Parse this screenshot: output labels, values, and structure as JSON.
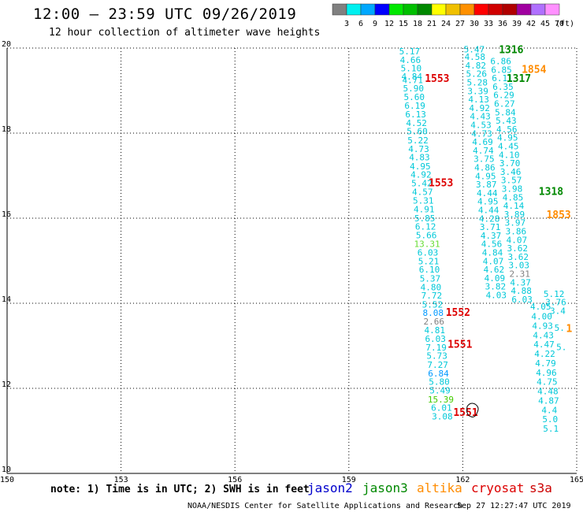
{
  "header": {
    "title": "12:00 – 23:59 UTC 09/26/2019",
    "subtitle": "12 hour collection of altimeter wave heights"
  },
  "colorbar": {
    "unit": "(ft)",
    "bins": [
      {
        "color": "#808080",
        "label": "3"
      },
      {
        "color": "#00f0f0",
        "label": "6"
      },
      {
        "color": "#00a8ff",
        "label": "9"
      },
      {
        "color": "#0000ff",
        "label": "12"
      },
      {
        "color": "#00e800",
        "label": "15"
      },
      {
        "color": "#00c000",
        "label": "18"
      },
      {
        "color": "#008800",
        "label": "21"
      },
      {
        "color": "#ffff00",
        "label": "24"
      },
      {
        "color": "#f0c000",
        "label": "27"
      },
      {
        "color": "#ff9000",
        "label": "30"
      },
      {
        "color": "#ff0000",
        "label": "33"
      },
      {
        "color": "#d00000",
        "label": "36"
      },
      {
        "color": "#b00000",
        "label": "39"
      },
      {
        "color": "#a000a0",
        "label": "42"
      },
      {
        "color": "#b070ff",
        "label": "45"
      },
      {
        "color": "#ff90ff",
        "label": "70"
      }
    ]
  },
  "chart_data": {
    "type": "scatter",
    "title": "12:00 – 23:59 UTC 09/26/2019",
    "subtitle": "12 hour collection of altimeter wave heights",
    "xlim": [
      150,
      165
    ],
    "ylim": [
      10,
      20
    ],
    "x_ticks": [
      "150",
      "153",
      "156",
      "159",
      "162",
      "165"
    ],
    "y_ticks": [
      "10",
      "12",
      "14",
      "16",
      "18",
      "20"
    ],
    "grid": true,
    "satellites": [
      {
        "name": "jason2",
        "color": "#0000cc"
      },
      {
        "name": "jason3",
        "color": "#008800"
      },
      {
        "name": "altika",
        "color": "#ff8c00"
      },
      {
        "name": "cryosat",
        "color": "#dd0000"
      },
      {
        "name": "s3a",
        "color": "#cc0000"
      }
    ],
    "track_west": [
      {
        "x": 160.6,
        "y": 19.85,
        "v": "5.17",
        "c": "#00c8d8"
      },
      {
        "x": 160.62,
        "y": 19.65,
        "v": "4.66",
        "c": "#00c8d8"
      },
      {
        "x": 160.64,
        "y": 19.45,
        "v": "5.10",
        "c": "#00c8d8"
      },
      {
        "x": 160.66,
        "y": 19.26,
        "v": "4.84",
        "c": "#00c8d8"
      },
      {
        "x": 160.68,
        "y": 19.18,
        "v": "4.71",
        "c": "#00c8d8"
      },
      {
        "x": 160.7,
        "y": 18.98,
        "v": "5.90",
        "c": "#00c8d8"
      },
      {
        "x": 160.72,
        "y": 18.78,
        "v": "5.60",
        "c": "#00c8d8"
      },
      {
        "x": 160.74,
        "y": 18.57,
        "v": "6.19",
        "c": "#00c8d8"
      },
      {
        "x": 160.76,
        "y": 18.37,
        "v": "6.13",
        "c": "#00c8d8"
      },
      {
        "x": 160.78,
        "y": 18.17,
        "v": "4.52",
        "c": "#00c8d8"
      },
      {
        "x": 160.8,
        "y": 17.97,
        "v": "5.60",
        "c": "#00c8d8"
      },
      {
        "x": 160.82,
        "y": 17.76,
        "v": "5.22",
        "c": "#00c8d8"
      },
      {
        "x": 160.84,
        "y": 17.56,
        "v": "4.73",
        "c": "#00c8d8"
      },
      {
        "x": 160.86,
        "y": 17.36,
        "v": "4.83",
        "c": "#00c8d8"
      },
      {
        "x": 160.88,
        "y": 17.15,
        "v": "4.95",
        "c": "#00c8d8"
      },
      {
        "x": 160.9,
        "y": 16.95,
        "v": "4.92",
        "c": "#00c8d8"
      },
      {
        "x": 160.92,
        "y": 16.75,
        "v": "5.42",
        "c": "#00c8d8"
      },
      {
        "x": 160.94,
        "y": 16.55,
        "v": "4.57",
        "c": "#00c8d8"
      },
      {
        "x": 160.96,
        "y": 16.34,
        "v": "5.31",
        "c": "#00c8d8"
      },
      {
        "x": 160.98,
        "y": 16.14,
        "v": "4.91",
        "c": "#00c8d8"
      },
      {
        "x": 161.0,
        "y": 15.93,
        "v": "5.85",
        "c": "#00c8d8"
      },
      {
        "x": 161.02,
        "y": 15.73,
        "v": "6.12",
        "c": "#00c8d8"
      },
      {
        "x": 161.04,
        "y": 15.53,
        "v": "5.66",
        "c": "#00c8d8"
      },
      {
        "x": 161.06,
        "y": 15.32,
        "v": "13.31",
        "c": "#66dd33"
      },
      {
        "x": 161.08,
        "y": 15.12,
        "v": "6.03",
        "c": "#00c8d8"
      },
      {
        "x": 161.1,
        "y": 14.92,
        "v": "5.21",
        "c": "#00c8d8"
      },
      {
        "x": 161.12,
        "y": 14.72,
        "v": "6.10",
        "c": "#00c8d8"
      },
      {
        "x": 161.14,
        "y": 14.51,
        "v": "5.37",
        "c": "#00c8d8"
      },
      {
        "x": 161.16,
        "y": 14.31,
        "v": "4.80",
        "c": "#00c8d8"
      },
      {
        "x": 161.18,
        "y": 14.11,
        "v": "7.72",
        "c": "#00c8d8"
      },
      {
        "x": 161.2,
        "y": 13.9,
        "v": "5.52",
        "c": "#00c8d8"
      },
      {
        "x": 161.22,
        "y": 13.7,
        "v": "8.08",
        "c": "#0099ff"
      },
      {
        "x": 161.24,
        "y": 13.5,
        "v": "2.66",
        "c": "#808080"
      },
      {
        "x": 161.26,
        "y": 13.3,
        "v": "4.81",
        "c": "#00c8d8"
      },
      {
        "x": 161.28,
        "y": 13.09,
        "v": "6.03",
        "c": "#00c8d8"
      },
      {
        "x": 161.3,
        "y": 12.89,
        "v": "7.19",
        "c": "#00c8d8"
      },
      {
        "x": 161.32,
        "y": 12.69,
        "v": "5.73",
        "c": "#00c8d8"
      },
      {
        "x": 161.34,
        "y": 12.48,
        "v": "7.27",
        "c": "#00c8d8"
      },
      {
        "x": 161.36,
        "y": 12.28,
        "v": "6.84",
        "c": "#0099ff"
      },
      {
        "x": 161.38,
        "y": 12.08,
        "v": "5.80",
        "c": "#00c8d8"
      },
      {
        "x": 161.4,
        "y": 11.88,
        "v": "5.49",
        "c": "#00c8d8"
      },
      {
        "x": 161.42,
        "y": 11.67,
        "v": "15.39",
        "c": "#44cc00"
      },
      {
        "x": 161.44,
        "y": 11.47,
        "v": "6.01",
        "c": "#00c8d8"
      },
      {
        "x": 161.46,
        "y": 11.27,
        "v": "3.08",
        "c": "#00c8d8"
      }
    ],
    "track_east": [
      {
        "x": 162.3,
        "y": 19.9,
        "v": "5.47",
        "c": "#00c8d8"
      },
      {
        "x": 162.32,
        "y": 19.72,
        "v": "4.58",
        "c": "#00c8d8"
      },
      {
        "x": 162.34,
        "y": 19.52,
        "v": "4.82",
        "c": "#00c8d8"
      },
      {
        "x": 162.36,
        "y": 19.32,
        "v": "5.26",
        "c": "#00c8d8"
      },
      {
        "x": 162.38,
        "y": 19.12,
        "v": "5.28",
        "c": "#00c8d8"
      },
      {
        "x": 162.4,
        "y": 18.92,
        "v": "3.39",
        "c": "#00c8d8"
      },
      {
        "x": 162.42,
        "y": 18.72,
        "v": "4.13",
        "c": "#00c8d8"
      },
      {
        "x": 162.44,
        "y": 18.52,
        "v": "4.92",
        "c": "#00c8d8"
      },
      {
        "x": 162.46,
        "y": 18.32,
        "v": "4.43",
        "c": "#00c8d8"
      },
      {
        "x": 162.48,
        "y": 18.12,
        "v": "4.53",
        "c": "#00c8d8"
      },
      {
        "x": 162.5,
        "y": 17.92,
        "v": "4.73",
        "c": "#00c8d8"
      },
      {
        "x": 162.52,
        "y": 17.72,
        "v": "4.69",
        "c": "#00c8d8"
      },
      {
        "x": 162.54,
        "y": 17.52,
        "v": "4.74",
        "c": "#00c8d8"
      },
      {
        "x": 162.56,
        "y": 17.32,
        "v": "3.75",
        "c": "#00c8d8"
      },
      {
        "x": 162.58,
        "y": 17.12,
        "v": "4.86",
        "c": "#00c8d8"
      },
      {
        "x": 162.6,
        "y": 16.92,
        "v": "4.95",
        "c": "#00c8d8"
      },
      {
        "x": 162.62,
        "y": 16.72,
        "v": "3.87",
        "c": "#00c8d8"
      },
      {
        "x": 162.64,
        "y": 16.52,
        "v": "4.44",
        "c": "#00c8d8"
      },
      {
        "x": 162.66,
        "y": 16.32,
        "v": "4.95",
        "c": "#00c8d8"
      },
      {
        "x": 162.68,
        "y": 16.12,
        "v": "4.44",
        "c": "#00c8d8"
      },
      {
        "x": 162.7,
        "y": 15.92,
        "v": "4.28",
        "c": "#00c8d8"
      },
      {
        "x": 162.72,
        "y": 15.72,
        "v": "3.71",
        "c": "#00c8d8"
      },
      {
        "x": 162.74,
        "y": 15.52,
        "v": "4.37",
        "c": "#00c8d8"
      },
      {
        "x": 162.76,
        "y": 15.32,
        "v": "4.56",
        "c": "#00c8d8"
      },
      {
        "x": 162.78,
        "y": 15.12,
        "v": "4.84",
        "c": "#00c8d8"
      },
      {
        "x": 162.8,
        "y": 14.92,
        "v": "4.07",
        "c": "#00c8d8"
      },
      {
        "x": 162.82,
        "y": 14.72,
        "v": "4.62",
        "c": "#00c8d8"
      },
      {
        "x": 162.84,
        "y": 14.52,
        "v": "4.09",
        "c": "#00c8d8"
      },
      {
        "x": 162.86,
        "y": 14.32,
        "v": "3.82",
        "c": "#00c8d8"
      },
      {
        "x": 162.88,
        "y": 14.12,
        "v": "4.03",
        "c": "#00c8d8"
      }
    ],
    "track_far_east": [
      {
        "x": 163.0,
        "y": 19.62,
        "v": "6.86",
        "c": "#00c8d8"
      },
      {
        "x": 163.02,
        "y": 19.42,
        "v": "6.85",
        "c": "#00c8d8"
      },
      {
        "x": 163.04,
        "y": 19.22,
        "v": "6.11",
        "c": "#00c8d8"
      },
      {
        "x": 163.06,
        "y": 19.02,
        "v": "6.35",
        "c": "#00c8d8"
      },
      {
        "x": 163.08,
        "y": 18.82,
        "v": "6.29",
        "c": "#00c8d8"
      },
      {
        "x": 163.1,
        "y": 18.62,
        "v": "6.27",
        "c": "#00c8d8"
      },
      {
        "x": 163.12,
        "y": 18.42,
        "v": "5.84",
        "c": "#00c8d8"
      },
      {
        "x": 163.14,
        "y": 18.22,
        "v": "5.43",
        "c": "#00c8d8"
      },
      {
        "x": 163.16,
        "y": 18.02,
        "v": "4.56",
        "c": "#00c8d8"
      },
      {
        "x": 163.18,
        "y": 17.82,
        "v": "4.95",
        "c": "#00c8d8"
      },
      {
        "x": 163.2,
        "y": 17.62,
        "v": "4.45",
        "c": "#00c8d8"
      },
      {
        "x": 163.22,
        "y": 17.42,
        "v": "4.10",
        "c": "#00c8d8"
      },
      {
        "x": 163.24,
        "y": 17.22,
        "v": "3.70",
        "c": "#00c8d8"
      },
      {
        "x": 163.26,
        "y": 17.02,
        "v": "3.46",
        "c": "#00c8d8"
      },
      {
        "x": 163.28,
        "y": 16.82,
        "v": "3.57",
        "c": "#00c8d8"
      },
      {
        "x": 163.3,
        "y": 16.62,
        "v": "3.98",
        "c": "#00c8d8"
      },
      {
        "x": 163.32,
        "y": 16.42,
        "v": "4.85",
        "c": "#00c8d8"
      },
      {
        "x": 163.34,
        "y": 16.22,
        "v": "4.14",
        "c": "#00c8d8"
      },
      {
        "x": 163.36,
        "y": 16.02,
        "v": "3.89",
        "c": "#00c8d8"
      },
      {
        "x": 163.38,
        "y": 15.82,
        "v": "3.97",
        "c": "#00c8d8"
      },
      {
        "x": 163.4,
        "y": 15.62,
        "v": "3.86",
        "c": "#00c8d8"
      },
      {
        "x": 163.42,
        "y": 15.42,
        "v": "4.07",
        "c": "#00c8d8"
      },
      {
        "x": 163.44,
        "y": 15.22,
        "v": "3.62",
        "c": "#00c8d8"
      },
      {
        "x": 163.46,
        "y": 15.02,
        "v": "3.62",
        "c": "#00c8d8"
      },
      {
        "x": 163.48,
        "y": 14.82,
        "v": "3.03",
        "c": "#00c8d8"
      },
      {
        "x": 163.5,
        "y": 14.62,
        "v": "2.31",
        "c": "#808080"
      },
      {
        "x": 163.52,
        "y": 14.42,
        "v": "4.37",
        "c": "#00c8d8"
      },
      {
        "x": 163.54,
        "y": 14.22,
        "v": "4.88",
        "c": "#00c8d8"
      },
      {
        "x": 163.56,
        "y": 14.02,
        "v": "6.03",
        "c": "#00c8d8"
      }
    ],
    "track_edge": [
      {
        "x": 164.05,
        "y": 13.85,
        "v": "4.05",
        "c": "#00c8d8"
      },
      {
        "x": 164.08,
        "y": 13.62,
        "v": "4.00",
        "c": "#00c8d8"
      },
      {
        "x": 164.1,
        "y": 13.4,
        "v": "4.93",
        "c": "#00c8d8"
      },
      {
        "x": 164.12,
        "y": 13.18,
        "v": "4.43",
        "c": "#00c8d8"
      },
      {
        "x": 164.14,
        "y": 12.96,
        "v": "4.47",
        "c": "#00c8d8"
      },
      {
        "x": 164.16,
        "y": 12.74,
        "v": "4.22",
        "c": "#00c8d8"
      },
      {
        "x": 164.18,
        "y": 12.52,
        "v": "4.79",
        "c": "#00c8d8"
      },
      {
        "x": 164.2,
        "y": 12.3,
        "v": "4.96",
        "c": "#00c8d8"
      },
      {
        "x": 164.22,
        "y": 12.08,
        "v": "4.75",
        "c": "#00c8d8"
      },
      {
        "x": 164.24,
        "y": 11.86,
        "v": "4.48",
        "c": "#00c8d8"
      },
      {
        "x": 164.26,
        "y": 11.64,
        "v": "4.87",
        "c": "#00c8d8"
      },
      {
        "x": 164.28,
        "y": 11.42,
        "v": "4.4",
        "c": "#00c8d8"
      },
      {
        "x": 164.3,
        "y": 11.2,
        "v": "5.0",
        "c": "#00c8d8"
      },
      {
        "x": 164.32,
        "y": 10.98,
        "v": "5.1",
        "c": "#00c8d8"
      },
      {
        "x": 164.4,
        "y": 14.15,
        "v": "5.12",
        "c": "#00c8d8"
      },
      {
        "x": 164.45,
        "y": 13.95,
        "v": "3.76",
        "c": "#00c8d8"
      },
      {
        "x": 164.5,
        "y": 13.75,
        "v": "3.4",
        "c": "#00c8d8"
      },
      {
        "x": 164.55,
        "y": 13.35,
        "v": "5.",
        "c": "#00c8d8"
      },
      {
        "x": 164.6,
        "y": 12.9,
        "v": "5.",
        "c": "#00c8d8"
      }
    ],
    "track_labels": [
      {
        "x": 161.0,
        "y": 19.2,
        "v": "1553",
        "c": "#dd0000"
      },
      {
        "x": 161.1,
        "y": 16.75,
        "v": "1553",
        "c": "#dd0000"
      },
      {
        "x": 161.55,
        "y": 13.7,
        "v": "1552",
        "c": "#dd0000"
      },
      {
        "x": 161.6,
        "y": 12.95,
        "v": "1551",
        "c": "#dd0000"
      },
      {
        "x": 161.75,
        "y": 11.35,
        "v": "1551",
        "c": "#dd0000"
      },
      {
        "x": 162.95,
        "y": 19.88,
        "v": "1316",
        "c": "#008800"
      },
      {
        "x": 163.15,
        "y": 19.2,
        "v": "1317",
        "c": "#008800"
      },
      {
        "x": 164.0,
        "y": 16.55,
        "v": "1318",
        "c": "#008800"
      },
      {
        "x": 163.55,
        "y": 19.42,
        "v": "1854",
        "c": "#ff8c00"
      },
      {
        "x": 164.2,
        "y": 16.0,
        "v": "1853",
        "c": "#ff8c00"
      },
      {
        "x": 164.72,
        "y": 13.32,
        "v": "1",
        "c": "#ff8c00"
      }
    ]
  },
  "legend": {
    "note": "note: 1) Time is in UTC; 2) SWH is in feet",
    "jason2": "jason2",
    "jason3": "jason3",
    "altika": "altika",
    "cryosat": "cryosat",
    "s3a": "s3a"
  },
  "footer": {
    "credit": "NOAA/NESDIS Center for Satellite Applications and Research",
    "timestamp": "Sep 27 12:27:47 UTC 2019"
  }
}
